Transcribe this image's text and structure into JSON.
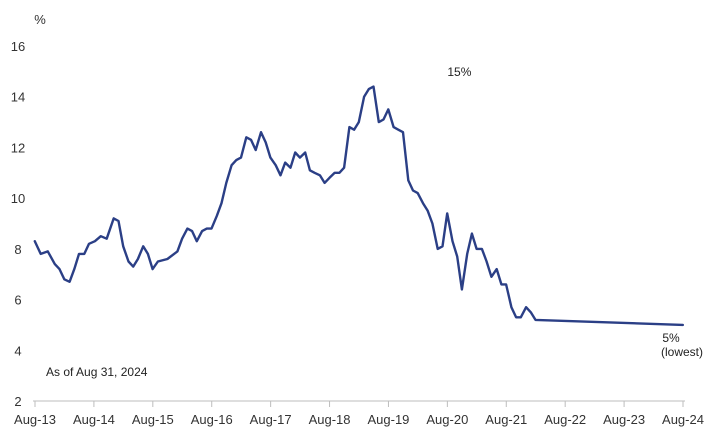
{
  "chart_data": {
    "type": "line",
    "title": "",
    "xlabel": "",
    "ylabel": "%",
    "ylim": [
      2,
      16
    ],
    "yticks": [
      2,
      4,
      6,
      8,
      10,
      12,
      14,
      16
    ],
    "xlim": [
      2013.5833,
      2024.5833
    ],
    "grid": false,
    "color": "#2b3f86",
    "xticks": [
      {
        "x": 2013.5833,
        "label": "Aug-13"
      },
      {
        "x": 2014.5833,
        "label": "Aug-14"
      },
      {
        "x": 2015.5833,
        "label": "Aug-15"
      },
      {
        "x": 2016.5833,
        "label": "Aug-16"
      },
      {
        "x": 2017.5833,
        "label": "Aug-17"
      },
      {
        "x": 2018.5833,
        "label": "Aug-18"
      },
      {
        "x": 2019.5833,
        "label": "Aug-19"
      },
      {
        "x": 2020.5833,
        "label": "Aug-20"
      },
      {
        "x": 2021.5833,
        "label": "Aug-21"
      },
      {
        "x": 2022.5833,
        "label": "Aug-22"
      },
      {
        "x": 2023.5833,
        "label": "Aug-23"
      },
      {
        "x": 2024.5833,
        "label": "Aug-24"
      }
    ],
    "series": [
      {
        "name": "",
        "points": [
          [
            2013.58,
            8.3
          ],
          [
            2013.68,
            7.8
          ],
          [
            2013.8,
            7.9
          ],
          [
            2013.92,
            7.4
          ],
          [
            2014.0,
            7.2
          ],
          [
            2014.08,
            6.8
          ],
          [
            2014.17,
            6.7
          ],
          [
            2014.25,
            7.2
          ],
          [
            2014.33,
            7.8
          ],
          [
            2014.42,
            7.8
          ],
          [
            2014.5,
            8.2
          ],
          [
            2014.6,
            8.3
          ],
          [
            2014.7,
            8.5
          ],
          [
            2014.8,
            8.4
          ],
          [
            2014.92,
            9.2
          ],
          [
            2015.0,
            9.1
          ],
          [
            2015.08,
            8.1
          ],
          [
            2015.17,
            7.5
          ],
          [
            2015.25,
            7.3
          ],
          [
            2015.33,
            7.6
          ],
          [
            2015.42,
            8.1
          ],
          [
            2015.5,
            7.8
          ],
          [
            2015.58,
            7.2
          ],
          [
            2015.67,
            7.5
          ],
          [
            2015.83,
            7.6
          ],
          [
            2016.0,
            7.9
          ],
          [
            2016.08,
            8.4
          ],
          [
            2016.17,
            8.8
          ],
          [
            2016.25,
            8.7
          ],
          [
            2016.33,
            8.3
          ],
          [
            2016.42,
            8.7
          ],
          [
            2016.5,
            8.8
          ],
          [
            2016.58,
            8.8
          ],
          [
            2016.67,
            9.3
          ],
          [
            2016.75,
            9.8
          ],
          [
            2016.83,
            10.6
          ],
          [
            2016.92,
            11.3
          ],
          [
            2017.0,
            11.5
          ],
          [
            2017.08,
            11.6
          ],
          [
            2017.17,
            12.4
          ],
          [
            2017.25,
            12.3
          ],
          [
            2017.33,
            11.9
          ],
          [
            2017.42,
            12.6
          ],
          [
            2017.5,
            12.2
          ],
          [
            2017.58,
            11.6
          ],
          [
            2017.67,
            11.3
          ],
          [
            2017.75,
            10.9
          ],
          [
            2017.83,
            11.4
          ],
          [
            2017.92,
            11.2
          ],
          [
            2018.0,
            11.8
          ],
          [
            2018.08,
            11.6
          ],
          [
            2018.17,
            11.8
          ],
          [
            2018.25,
            11.1
          ],
          [
            2018.33,
            11.0
          ],
          [
            2018.42,
            10.9
          ],
          [
            2018.5,
            10.6
          ],
          [
            2018.58,
            10.8
          ],
          [
            2018.67,
            11.0
          ],
          [
            2018.75,
            11.0
          ],
          [
            2018.83,
            11.2
          ],
          [
            2018.92,
            12.8
          ],
          [
            2019.0,
            12.7
          ],
          [
            2019.08,
            13.0
          ],
          [
            2019.17,
            14.0
          ],
          [
            2019.25,
            14.3
          ],
          [
            2019.33,
            14.4
          ],
          [
            2019.42,
            13.0
          ],
          [
            2019.5,
            13.1
          ],
          [
            2019.58,
            13.5
          ],
          [
            2019.67,
            12.8
          ],
          [
            2019.75,
            12.7
          ],
          [
            2019.83,
            12.6
          ],
          [
            2019.92,
            10.7
          ],
          [
            2020.0,
            10.3
          ],
          [
            2020.08,
            10.2
          ],
          [
            2020.17,
            9.8
          ],
          [
            2020.25,
            9.5
          ],
          [
            2020.33,
            9.0
          ],
          [
            2020.42,
            8.0
          ],
          [
            2020.5,
            8.1
          ],
          [
            2020.58,
            9.4
          ],
          [
            2020.67,
            8.3
          ],
          [
            2020.75,
            7.7
          ],
          [
            2020.83,
            6.4
          ],
          [
            2020.92,
            7.8
          ],
          [
            2021.0,
            8.6
          ],
          [
            2021.08,
            8.0
          ],
          [
            2021.17,
            8.0
          ],
          [
            2021.25,
            7.5
          ],
          [
            2021.33,
            6.9
          ],
          [
            2021.42,
            7.2
          ],
          [
            2021.5,
            6.6
          ],
          [
            2021.58,
            6.6
          ],
          [
            2021.67,
            5.7
          ],
          [
            2021.75,
            5.3
          ],
          [
            2021.83,
            5.3
          ],
          [
            2021.92,
            5.7
          ],
          [
            2022.0,
            5.5
          ],
          [
            2022.08,
            5.2
          ],
          [
            2024.58,
            5.0
          ]
        ]
      }
    ],
    "annotations": [
      {
        "x": 2020.5833,
        "y": 15,
        "text": "15%"
      },
      {
        "x": 2024.5833,
        "y": 5,
        "text": "5%",
        "text2": "(lowest)"
      }
    ],
    "note": "As of Aug 31, 2024"
  }
}
